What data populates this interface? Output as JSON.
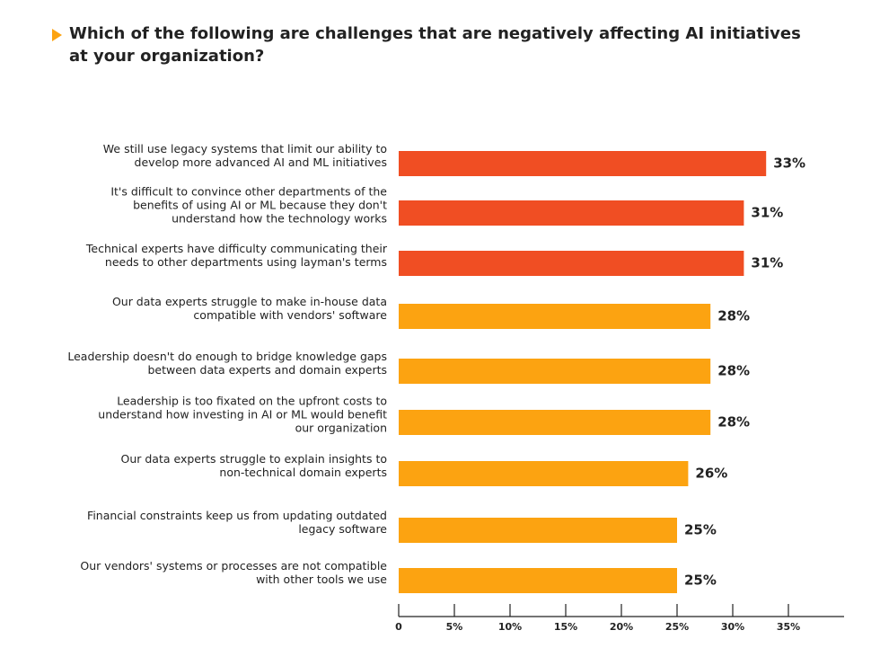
{
  "chart_data": {
    "type": "bar",
    "orientation": "horizontal",
    "title": "Which of the following are challenges that are negatively affecting AI initiatives at your organization?",
    "categories": [
      [
        "We still use legacy systems that limit our ability to",
        "develop more advanced AI and ML initiatives"
      ],
      [
        "It's difficult to convince other departments of the",
        "benefits of using AI or ML because they don't",
        "understand how the technology works"
      ],
      [
        "Technical experts have difficulty communicating their",
        "needs to other departments using layman's terms"
      ],
      [
        "Our data experts struggle to make in-house data",
        "compatible with vendors' software"
      ],
      [
        "Leadership doesn't do enough to bridge knowledge gaps",
        "between data experts and domain experts"
      ],
      [
        "Leadership is too fixated on the upfront costs to",
        "understand how investing in AI or ML would benefit",
        "our organization"
      ],
      [
        "Our data experts struggle to explain insights to",
        "non-technical domain experts"
      ],
      [
        "Financial constraints keep us from updating outdated",
        "legacy software"
      ],
      [
        "Our vendors' systems or processes are not compatible",
        "with other tools we use"
      ]
    ],
    "values": [
      33,
      31,
      31,
      28,
      28,
      28,
      26,
      25,
      25
    ],
    "value_labels": [
      "33%",
      "31%",
      "31%",
      "28%",
      "28%",
      "28%",
      "26%",
      "25%",
      "25%"
    ],
    "colors": [
      "#f04e23",
      "#f04e23",
      "#f04e23",
      "#fca311",
      "#fca311",
      "#fca311",
      "#fca311",
      "#fca311",
      "#fca311"
    ],
    "xlim": [
      0,
      40
    ],
    "xticks": [
      0,
      {
        "value": 5,
        "label": "5%"
      },
      {
        "value": 10,
        "label": "10%"
      },
      {
        "value": 15,
        "label": "15%"
      },
      {
        "value": 20,
        "label": "20%"
      },
      {
        "value": 25,
        "label": "25%"
      },
      {
        "value": 30,
        "label": "30%"
      },
      {
        "value": 35,
        "label": "35%"
      }
    ]
  }
}
